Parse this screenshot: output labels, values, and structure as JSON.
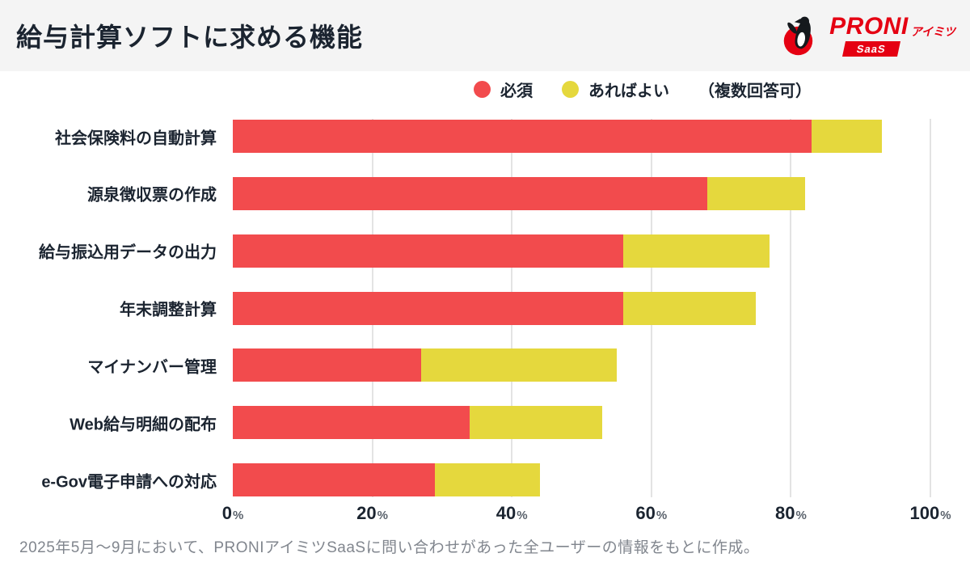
{
  "header": {
    "title": "給与計算ソフトに求める機能",
    "logo": {
      "brand": "PRONI",
      "sub": "アイミツ",
      "badge": "SaaS",
      "brand_color": "#e50012"
    }
  },
  "legend": {
    "items": [
      {
        "label": "必須",
        "color": "#f24b4d"
      },
      {
        "label": "あればよい",
        "color": "#e5d83d"
      }
    ],
    "note": "（複数回答可）"
  },
  "chart_data": {
    "type": "bar",
    "orientation": "horizontal",
    "stacked": true,
    "title": "給与計算ソフトに求める機能",
    "categories": [
      "社会保険料の自動計算",
      "源泉徴収票の作成",
      "給与振込用データの出力",
      "年末調整計算",
      "マイナンバー管理",
      "Web給与明細の配布",
      "e-Gov電子申請への対応"
    ],
    "series": [
      {
        "name": "必須",
        "color": "#f24b4d",
        "values": [
          83,
          68,
          56,
          56,
          27,
          34,
          29
        ]
      },
      {
        "name": "あればよい",
        "color": "#e5d83d",
        "values": [
          10,
          14,
          21,
          19,
          28,
          19,
          15
        ]
      }
    ],
    "stacked_totals": [
      93,
      82,
      77,
      75,
      55,
      53,
      44
    ],
    "x_ticks": [
      "0%",
      "20%",
      "40%",
      "60%",
      "80%",
      "100%"
    ],
    "xlim": [
      0,
      100
    ],
    "grid": true,
    "legend_position": "top"
  },
  "footer": {
    "note": "2025年5月〜9月において、PRONIアイミツSaaSに問い合わせがあった全ユーザーの情報をもとに作成。"
  }
}
